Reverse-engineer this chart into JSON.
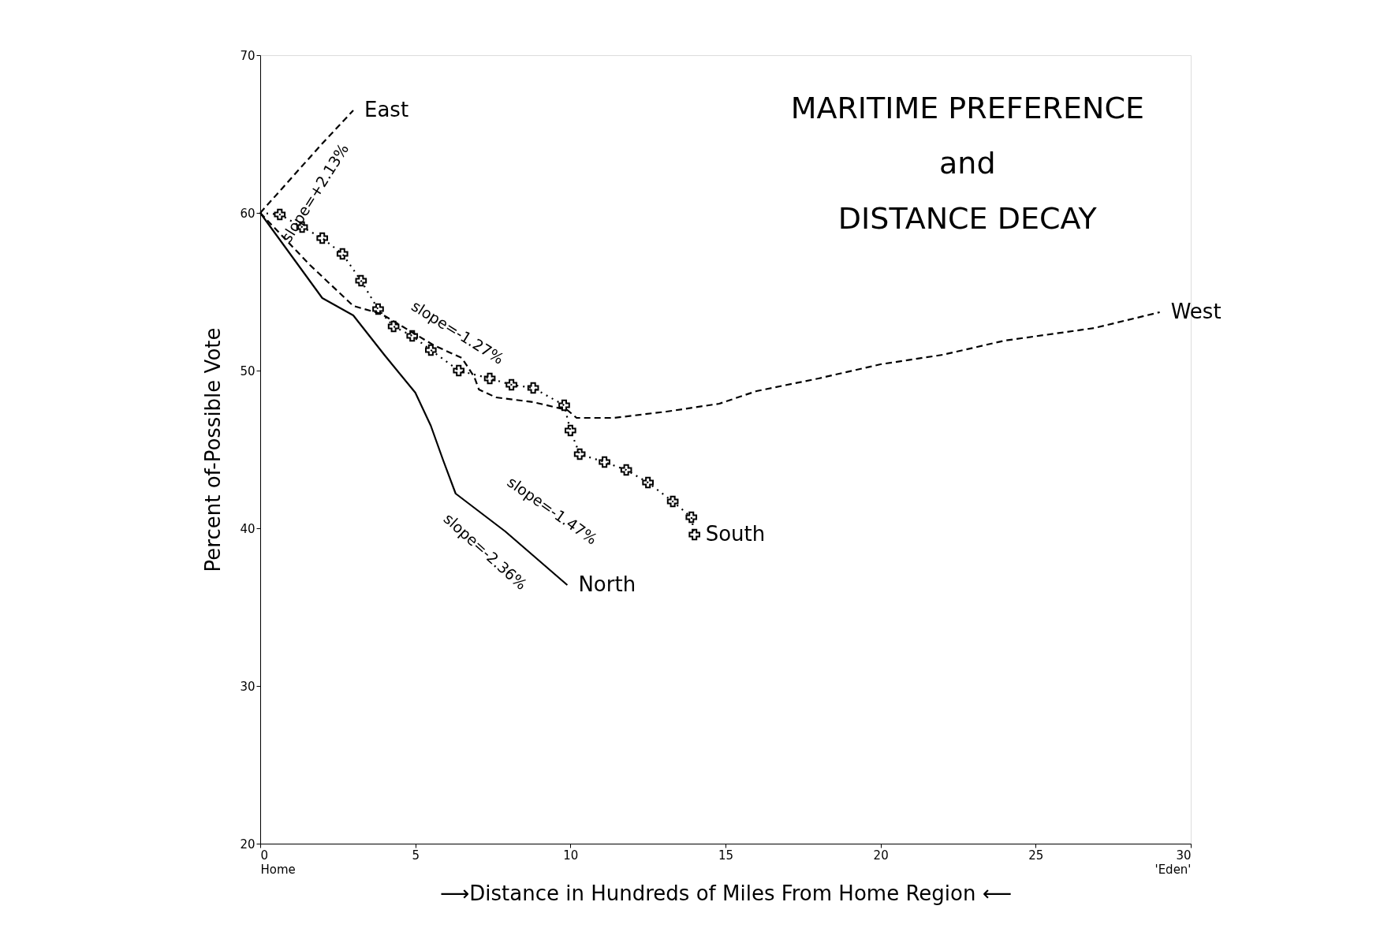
{
  "chart_data": {
    "type": "line",
    "title": "MARITIME PREFERENCE\nand\nDISTANCE DECAY",
    "xlabel": "⟶Distance in Hundreds of Miles From Home Region ⟵",
    "ylabel": "Percent of-Possible Vote",
    "xlim": [
      0,
      30
    ],
    "ylim": [
      20,
      70
    ],
    "xticks": [
      {
        "value": 0,
        "label": "0\nHome"
      },
      5,
      10,
      15,
      20,
      25,
      {
        "value": 30,
        "label": "30\n'Eden'"
      }
    ],
    "yticks": [
      20,
      30,
      40,
      50,
      60,
      70
    ],
    "grid": false,
    "series": [
      {
        "name": "East",
        "color": "#000000",
        "line_style": "dashed",
        "marker": "none",
        "x": [
          0,
          1,
          2,
          3
        ],
        "values": [
          60,
          62.2,
          64.4,
          66.5
        ]
      },
      {
        "name": "North",
        "color": "#000000",
        "line_style": "solid",
        "marker": "none",
        "x": [
          0,
          2.0,
          3.0,
          4.0,
          5.0,
          5.5,
          5.9,
          6.3,
          7.9,
          9.9
        ],
        "values": [
          60,
          54.6,
          53.5,
          51.0,
          48.6,
          46.5,
          44.3,
          42.2,
          39.8,
          36.4
        ]
      },
      {
        "name": "West",
        "color": "#000000",
        "line_style": "dashed",
        "marker": "none",
        "x": [
          0,
          1.6,
          3.0,
          3.9,
          5.6,
          6.5,
          6.9,
          7.05,
          7.6,
          8.8,
          9.9,
          10.2,
          11.4,
          13.1,
          14.8,
          16,
          18,
          20,
          22,
          24,
          26.9,
          29
        ],
        "values": [
          60,
          56.7,
          54.1,
          53.6,
          51.6,
          50.8,
          49.6,
          48.8,
          48.3,
          48.0,
          47.5,
          47.0,
          47.0,
          47.4,
          47.9,
          48.7,
          49.5,
          50.4,
          51.0,
          51.9,
          52.7,
          53.7
        ]
      },
      {
        "name": "South",
        "color": "#000000",
        "line_style": "dotted",
        "marker": "cross",
        "x": [
          0,
          0.63,
          1.35,
          2.0,
          2.65,
          3.25,
          3.8,
          4.3,
          4.9,
          5.5,
          6.4,
          7.4,
          8.1,
          8.8,
          9.8,
          10.0,
          10.3,
          11.1,
          11.8,
          12.5,
          13.3,
          13.9,
          14.0
        ],
        "values": [
          60,
          59.9,
          59.1,
          58.4,
          57.4,
          55.7,
          53.9,
          52.8,
          52.2,
          51.3,
          50.0,
          49.5,
          49.1,
          48.9,
          47.8,
          46.2,
          44.7,
          44.2,
          43.7,
          42.9,
          41.7,
          40.7,
          39.6
        ]
      }
    ],
    "annotations": [
      "slope=+2.13%",
      "slope=-1.27%",
      "slope=-1.47%",
      "slope=-2.36%"
    ]
  }
}
